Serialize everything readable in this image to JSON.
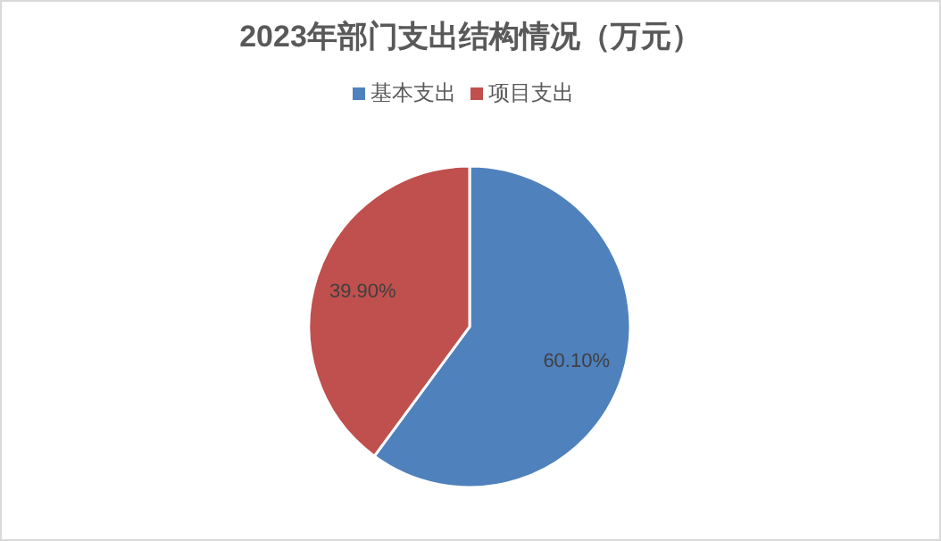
{
  "chart_data": {
    "type": "pie",
    "title": "2023年部门支出结构情况（万元）",
    "categories": [
      "基本支出",
      "项目支出"
    ],
    "values": [
      60.1,
      39.9
    ],
    "colors": [
      "#4f81bd",
      "#c0504d"
    ],
    "value_labels": [
      "60.10%",
      "39.90%"
    ],
    "legend": "top"
  }
}
